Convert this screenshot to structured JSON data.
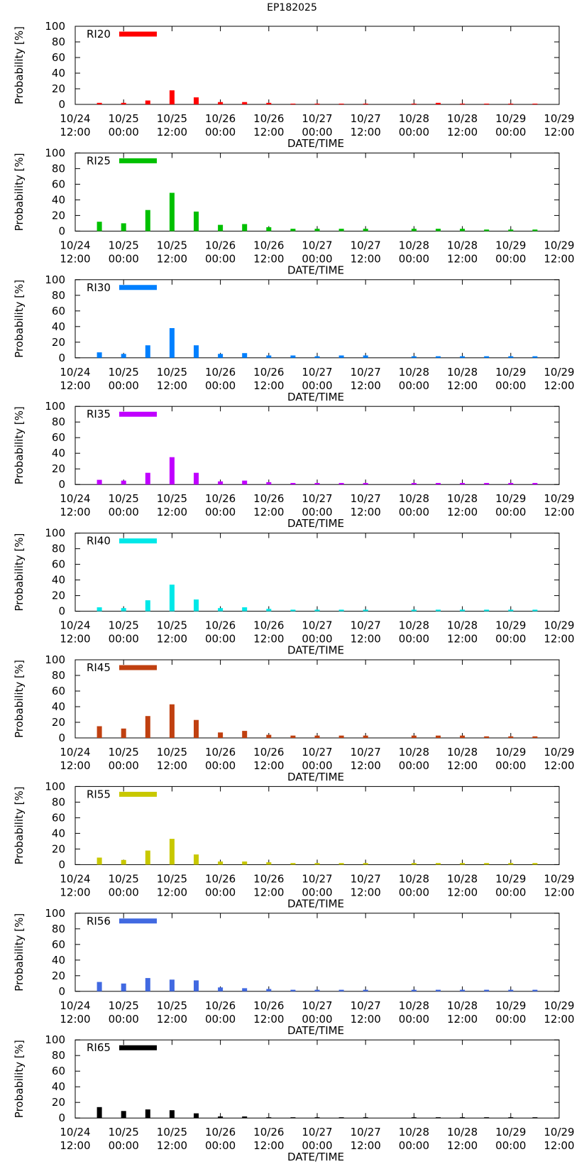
{
  "figure_title": "EP182025",
  "chart_data": [
    {
      "type": "bar",
      "legend": "RI20",
      "color": "#ff0000",
      "ylabel": "Probability [%]",
      "xlabel": "DATE/TIME",
      "ylim": [
        0,
        100
      ],
      "yticks": [
        "0",
        "20",
        "40",
        "60",
        "80",
        "100"
      ],
      "xticks": [
        [
          "10/24",
          "12:00"
        ],
        [
          "10/25",
          "00:00"
        ],
        [
          "10/25",
          "12:00"
        ],
        [
          "10/26",
          "00:00"
        ],
        [
          "10/26",
          "12:00"
        ],
        [
          "10/27",
          "00:00"
        ],
        [
          "10/27",
          "12:00"
        ],
        [
          "10/28",
          "00:00"
        ],
        [
          "10/28",
          "12:00"
        ],
        [
          "10/29",
          "00:00"
        ],
        [
          "10/29",
          "12:00"
        ]
      ],
      "x_hours": [
        6,
        12,
        18,
        24,
        30,
        36,
        42,
        48,
        54,
        60,
        66,
        72,
        84,
        90,
        96,
        102,
        108,
        114
      ],
      "values": [
        2,
        2,
        5,
        18,
        9,
        3,
        3,
        2,
        1,
        1,
        1,
        1,
        1,
        2,
        1,
        1,
        1,
        1
      ]
    },
    {
      "type": "bar",
      "legend": "RI25",
      "color": "#00c000",
      "ylabel": "Probability [%]",
      "xlabel": "DATE/TIME",
      "ylim": [
        0,
        100
      ],
      "yticks": [
        "0",
        "20",
        "40",
        "60",
        "80",
        "100"
      ],
      "xticks": [
        [
          "10/24",
          "12:00"
        ],
        [
          "10/25",
          "00:00"
        ],
        [
          "10/25",
          "12:00"
        ],
        [
          "10/26",
          "00:00"
        ],
        [
          "10/26",
          "12:00"
        ],
        [
          "10/27",
          "00:00"
        ],
        [
          "10/27",
          "12:00"
        ],
        [
          "10/28",
          "00:00"
        ],
        [
          "10/28",
          "12:00"
        ],
        [
          "10/29",
          "00:00"
        ],
        [
          "10/29",
          "12:00"
        ]
      ],
      "x_hours": [
        6,
        12,
        18,
        24,
        30,
        36,
        42,
        48,
        54,
        60,
        66,
        72,
        84,
        90,
        96,
        102,
        108,
        114
      ],
      "values": [
        12,
        10,
        27,
        49,
        25,
        8,
        9,
        5,
        3,
        3,
        3,
        3,
        3,
        3,
        3,
        2,
        2,
        2
      ]
    },
    {
      "type": "bar",
      "legend": "RI30",
      "color": "#0080ff",
      "ylabel": "Probability [%]",
      "xlabel": "DATE/TIME",
      "ylim": [
        0,
        100
      ],
      "yticks": [
        "0",
        "20",
        "40",
        "60",
        "80",
        "100"
      ],
      "xticks": [
        [
          "10/24",
          "12:00"
        ],
        [
          "10/25",
          "00:00"
        ],
        [
          "10/25",
          "12:00"
        ],
        [
          "10/26",
          "00:00"
        ],
        [
          "10/26",
          "12:00"
        ],
        [
          "10/27",
          "00:00"
        ],
        [
          "10/27",
          "12:00"
        ],
        [
          "10/28",
          "00:00"
        ],
        [
          "10/28",
          "12:00"
        ],
        [
          "10/29",
          "00:00"
        ],
        [
          "10/29",
          "12:00"
        ]
      ],
      "x_hours": [
        6,
        12,
        18,
        24,
        30,
        36,
        42,
        48,
        54,
        60,
        66,
        72,
        84,
        90,
        96,
        102,
        108,
        114
      ],
      "values": [
        7,
        5,
        16,
        38,
        16,
        5,
        6,
        3,
        3,
        2,
        3,
        3,
        2,
        2,
        2,
        2,
        2,
        2
      ]
    },
    {
      "type": "bar",
      "legend": "RI35",
      "color": "#c000ff",
      "ylabel": "Probability [%]",
      "xlabel": "DATE/TIME",
      "ylim": [
        0,
        100
      ],
      "yticks": [
        "0",
        "20",
        "40",
        "60",
        "80",
        "100"
      ],
      "xticks": [
        [
          "10/24",
          "12:00"
        ],
        [
          "10/25",
          "00:00"
        ],
        [
          "10/25",
          "12:00"
        ],
        [
          "10/26",
          "00:00"
        ],
        [
          "10/26",
          "12:00"
        ],
        [
          "10/27",
          "00:00"
        ],
        [
          "10/27",
          "12:00"
        ],
        [
          "10/28",
          "00:00"
        ],
        [
          "10/28",
          "12:00"
        ],
        [
          "10/29",
          "00:00"
        ],
        [
          "10/29",
          "12:00"
        ]
      ],
      "x_hours": [
        6,
        12,
        18,
        24,
        30,
        36,
        42,
        48,
        54,
        60,
        66,
        72,
        84,
        90,
        96,
        102,
        108,
        114
      ],
      "values": [
        6,
        5,
        15,
        35,
        15,
        4,
        5,
        3,
        2,
        2,
        2,
        2,
        2,
        2,
        2,
        2,
        2,
        2
      ]
    },
    {
      "type": "bar",
      "legend": "RI40",
      "color": "#00e8e8",
      "ylabel": "Probability [%]",
      "xlabel": "DATE/TIME",
      "ylim": [
        0,
        100
      ],
      "yticks": [
        "0",
        "20",
        "40",
        "60",
        "80",
        "100"
      ],
      "xticks": [
        [
          "10/24",
          "12:00"
        ],
        [
          "10/25",
          "00:00"
        ],
        [
          "10/25",
          "12:00"
        ],
        [
          "10/26",
          "00:00"
        ],
        [
          "10/26",
          "12:00"
        ],
        [
          "10/27",
          "00:00"
        ],
        [
          "10/27",
          "12:00"
        ],
        [
          "10/28",
          "00:00"
        ],
        [
          "10/28",
          "12:00"
        ],
        [
          "10/29",
          "00:00"
        ],
        [
          "10/29",
          "12:00"
        ]
      ],
      "x_hours": [
        6,
        12,
        18,
        24,
        30,
        36,
        42,
        48,
        54,
        60,
        66,
        72,
        84,
        90,
        96,
        102,
        108,
        114
      ],
      "values": [
        5,
        4,
        14,
        34,
        15,
        4,
        5,
        3,
        2,
        2,
        2,
        2,
        2,
        2,
        2,
        2,
        2,
        2
      ]
    },
    {
      "type": "bar",
      "legend": "RI45",
      "color": "#c04010",
      "ylabel": "Probability [%]",
      "xlabel": "DATE/TIME",
      "ylim": [
        0,
        100
      ],
      "yticks": [
        "0",
        "20",
        "40",
        "60",
        "80",
        "100"
      ],
      "xticks": [
        [
          "10/24",
          "12:00"
        ],
        [
          "10/25",
          "00:00"
        ],
        [
          "10/25",
          "12:00"
        ],
        [
          "10/26",
          "00:00"
        ],
        [
          "10/26",
          "12:00"
        ],
        [
          "10/27",
          "00:00"
        ],
        [
          "10/27",
          "12:00"
        ],
        [
          "10/28",
          "00:00"
        ],
        [
          "10/28",
          "12:00"
        ],
        [
          "10/29",
          "00:00"
        ],
        [
          "10/29",
          "12:00"
        ]
      ],
      "x_hours": [
        6,
        12,
        18,
        24,
        30,
        36,
        42,
        48,
        54,
        60,
        66,
        72,
        84,
        90,
        96,
        102,
        108,
        114
      ],
      "values": [
        15,
        12,
        28,
        43,
        23,
        7,
        9,
        4,
        3,
        3,
        3,
        3,
        3,
        3,
        3,
        2,
        2,
        2
      ]
    },
    {
      "type": "bar",
      "legend": "RI55",
      "color": "#c8c800",
      "ylabel": "Probability [%]",
      "xlabel": "DATE/TIME",
      "ylim": [
        0,
        100
      ],
      "yticks": [
        "0",
        "20",
        "40",
        "60",
        "80",
        "100"
      ],
      "xticks": [
        [
          "10/24",
          "12:00"
        ],
        [
          "10/25",
          "00:00"
        ],
        [
          "10/25",
          "12:00"
        ],
        [
          "10/26",
          "00:00"
        ],
        [
          "10/26",
          "12:00"
        ],
        [
          "10/27",
          "00:00"
        ],
        [
          "10/27",
          "12:00"
        ],
        [
          "10/28",
          "00:00"
        ],
        [
          "10/28",
          "12:00"
        ],
        [
          "10/29",
          "00:00"
        ],
        [
          "10/29",
          "12:00"
        ]
      ],
      "x_hours": [
        6,
        12,
        18,
        24,
        30,
        36,
        42,
        48,
        54,
        60,
        66,
        72,
        84,
        90,
        96,
        102,
        108,
        114
      ],
      "values": [
        9,
        6,
        18,
        33,
        13,
        4,
        4,
        3,
        2,
        2,
        2,
        2,
        2,
        2,
        2,
        2,
        2,
        2
      ]
    },
    {
      "type": "bar",
      "legend": "RI56",
      "color": "#4169e1",
      "ylabel": "Probability [%]",
      "xlabel": "DATE/TIME",
      "ylim": [
        0,
        100
      ],
      "yticks": [
        "0",
        "20",
        "40",
        "60",
        "80",
        "100"
      ],
      "xticks": [
        [
          "10/24",
          "12:00"
        ],
        [
          "10/25",
          "00:00"
        ],
        [
          "10/25",
          "12:00"
        ],
        [
          "10/26",
          "00:00"
        ],
        [
          "10/26",
          "12:00"
        ],
        [
          "10/27",
          "00:00"
        ],
        [
          "10/27",
          "12:00"
        ],
        [
          "10/28",
          "00:00"
        ],
        [
          "10/28",
          "12:00"
        ],
        [
          "10/29",
          "00:00"
        ],
        [
          "10/29",
          "12:00"
        ]
      ],
      "x_hours": [
        6,
        12,
        18,
        24,
        30,
        36,
        42,
        48,
        54,
        60,
        66,
        72,
        84,
        90,
        96,
        102,
        108,
        114
      ],
      "values": [
        12,
        10,
        17,
        15,
        14,
        5,
        4,
        3,
        2,
        2,
        2,
        2,
        2,
        2,
        2,
        2,
        2,
        2
      ]
    },
    {
      "type": "bar",
      "legend": "RI65",
      "color": "#000000",
      "ylabel": "Probability [%]",
      "xlabel": "DATE/TIME",
      "ylim": [
        0,
        100
      ],
      "yticks": [
        "0",
        "20",
        "40",
        "60",
        "80",
        "100"
      ],
      "xticks": [
        [
          "10/24",
          "12:00"
        ],
        [
          "10/25",
          "00:00"
        ],
        [
          "10/25",
          "12:00"
        ],
        [
          "10/26",
          "00:00"
        ],
        [
          "10/26",
          "12:00"
        ],
        [
          "10/27",
          "00:00"
        ],
        [
          "10/27",
          "12:00"
        ],
        [
          "10/28",
          "00:00"
        ],
        [
          "10/28",
          "12:00"
        ],
        [
          "10/29",
          "00:00"
        ],
        [
          "10/29",
          "12:00"
        ]
      ],
      "x_hours": [
        6,
        12,
        18,
        24,
        30,
        36,
        42,
        48,
        54,
        60,
        66,
        72,
        84,
        90,
        96,
        102,
        108,
        114
      ],
      "values": [
        14,
        9,
        11,
        10,
        6,
        2,
        2,
        1,
        1,
        1,
        1,
        1,
        1,
        1,
        1,
        1,
        1,
        1
      ]
    }
  ]
}
